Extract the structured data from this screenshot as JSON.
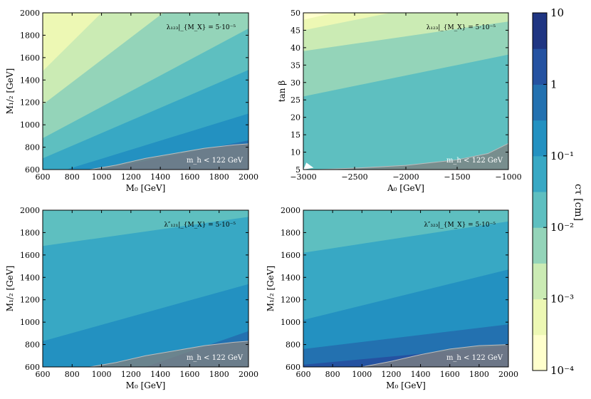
{
  "chart_data": {
    "type": "contour",
    "colorbar": {
      "label": "cτ [cm]",
      "scale": "log",
      "range": [
        0.0001,
        10
      ],
      "tick_labels": [
        "10⁻⁴",
        "10⁻³",
        "10⁻²",
        "10⁻¹",
        "1",
        "10"
      ],
      "levels": 10,
      "colors": [
        "#ffffcc",
        "#edf8b4",
        "#cbebb4",
        "#94d4b9",
        "#5ebfc0",
        "#38a8c4",
        "#2391c1",
        "#2371b0",
        "#2552a1",
        "#1f3582"
      ]
    },
    "excluded_region_label": "m_h < 122 GeV",
    "panels": [
      {
        "id": "lambda123_M0_M12",
        "annotation": "λ₁₂₃|_{M_X} = 5·10⁻⁵",
        "xlabel": "M₀ [GeV]",
        "ylabel": "M₁/₂ [GeV]",
        "xlim": [
          600,
          2000
        ],
        "ylim": [
          600,
          2000
        ],
        "xticks": [
          "600",
          "800",
          "1000",
          "1200",
          "1400",
          "1600",
          "1800",
          "2000"
        ],
        "yticks": [
          "600",
          "800",
          "1000",
          "1200",
          "1400",
          "1600",
          "1800",
          "2000"
        ],
        "bands": [
          {
            "level": 1,
            "boundary": [
              [
                600,
                2000
              ],
              [
                655,
                2000
              ]
            ]
          },
          {
            "level": 2,
            "boundary": [
              [
                600,
                1480
              ],
              [
                1000,
                2000
              ]
            ]
          },
          {
            "level": 3,
            "boundary": [
              [
                600,
                1180
              ],
              [
                1420,
                2000
              ]
            ]
          },
          {
            "level": 4,
            "boundary": [
              [
                600,
                880
              ],
              [
                2000,
                1860
              ]
            ]
          },
          {
            "level": 5,
            "boundary": [
              [
                600,
                700
              ],
              [
                2000,
                1490
              ]
            ]
          },
          {
            "level": 6,
            "boundary": [
              [
                760,
                600
              ],
              [
                2000,
                1100
              ]
            ]
          },
          {
            "level": 7,
            "boundary": [
              [
                1000,
                600
              ],
              [
                2000,
                860
              ]
            ]
          }
        ],
        "excluded": [
          [
            920,
            600
          ],
          [
            1100,
            640
          ],
          [
            1300,
            700
          ],
          [
            1500,
            745
          ],
          [
            1700,
            790
          ],
          [
            1900,
            820
          ],
          [
            2000,
            830
          ]
        ]
      },
      {
        "id": "lambda123_A0_tanb",
        "annotation": "λ₁₂₃|_{M_X} = 5·10⁻⁵",
        "xlabel": "A₀ [GeV]",
        "ylabel": "tan β",
        "xlim": [
          -3000,
          -1000
        ],
        "ylim": [
          5,
          50
        ],
        "xticks": [
          "−3000",
          "−2500",
          "−2000",
          "−1500",
          "−1000"
        ],
        "yticks": [
          "5",
          "10",
          "15",
          "20",
          "25",
          "30",
          "35",
          "40",
          "45",
          "50"
        ],
        "bands": [
          {
            "level": 1,
            "boundary": [
              [
                -3000,
                48
              ],
              [
                -2700,
                50
              ]
            ]
          },
          {
            "level": 2,
            "boundary": [
              [
                -3000,
                45
              ],
              [
                -2150,
                50
              ]
            ]
          },
          {
            "level": 3,
            "boundary": [
              [
                -3000,
                39
              ],
              [
                -1000,
                47.5
              ]
            ]
          },
          {
            "level": 4,
            "boundary": [
              [
                -3000,
                26
              ],
              [
                -1000,
                38
              ]
            ]
          }
        ],
        "white_region": [
          [
            -3000,
            5
          ],
          [
            -2900,
            5.5
          ],
          [
            -2970,
            7
          ]
        ],
        "excluded": [
          [
            -2860,
            5
          ],
          [
            -2500,
            5.4
          ],
          [
            -2000,
            6.2
          ],
          [
            -1500,
            7.8
          ],
          [
            -1200,
            9.6
          ],
          [
            -1000,
            12.5
          ]
        ]
      },
      {
        "id": "lambda121pp_M0_M12",
        "annotation": "λ″₁₂₁|_{M_X} = 5·10⁻⁵",
        "xlabel": "M₀ [GeV]",
        "ylabel": "M₁/₂ [GeV]",
        "xlim": [
          600,
          2000
        ],
        "ylim": [
          600,
          2000
        ],
        "xticks": [
          "600",
          "800",
          "1000",
          "1200",
          "1400",
          "1600",
          "1800",
          "2000"
        ],
        "yticks": [
          "600",
          "800",
          "1000",
          "1200",
          "1400",
          "1600",
          "1800",
          "2000"
        ],
        "bands": [
          {
            "level": 5,
            "boundary": [
              [
                600,
                1680
              ],
              [
                2000,
                1940
              ]
            ]
          },
          {
            "level": 6,
            "boundary": [
              [
                600,
                830
              ],
              [
                2000,
                1340
              ]
            ]
          },
          {
            "level": 7,
            "boundary": [
              [
                1300,
                600
              ],
              [
                2000,
                920
              ]
            ]
          }
        ],
        "excluded": [
          [
            920,
            600
          ],
          [
            1100,
            640
          ],
          [
            1300,
            700
          ],
          [
            1500,
            745
          ],
          [
            1700,
            790
          ],
          [
            1900,
            820
          ],
          [
            2000,
            830
          ]
        ]
      },
      {
        "id": "lambda323pp_M0_M12",
        "annotation": "λ″₃₂₃|_{M_X} = 5·10⁻⁵",
        "xlabel": "M₀ [GeV]",
        "ylabel": "M₁/₂ [GeV]",
        "xlim": [
          600,
          2000
        ],
        "ylim": [
          600,
          2000
        ],
        "xticks": [
          "600",
          "800",
          "1000",
          "1200",
          "1400",
          "1600",
          "1800",
          "2000"
        ],
        "yticks": [
          "600",
          "800",
          "1000",
          "1200",
          "1400",
          "1600",
          "1800",
          "2000"
        ],
        "bands": [
          {
            "level": 5,
            "boundary": [
              [
                600,
                1620
              ],
              [
                2000,
                1900
              ]
            ]
          },
          {
            "level": 6,
            "boundary": [
              [
                600,
                1020
              ],
              [
                2000,
                1470
              ]
            ]
          },
          {
            "level": 7,
            "boundary": [
              [
                600,
                760
              ],
              [
                2000,
                980
              ]
            ]
          },
          {
            "level": 8,
            "boundary": [
              [
                600,
                620
              ],
              [
                2000,
                790
              ]
            ]
          }
        ],
        "excluded": [
          [
            1000,
            600
          ],
          [
            1200,
            650
          ],
          [
            1400,
            710
          ],
          [
            1600,
            760
          ],
          [
            1800,
            790
          ],
          [
            2000,
            800
          ]
        ]
      }
    ]
  }
}
